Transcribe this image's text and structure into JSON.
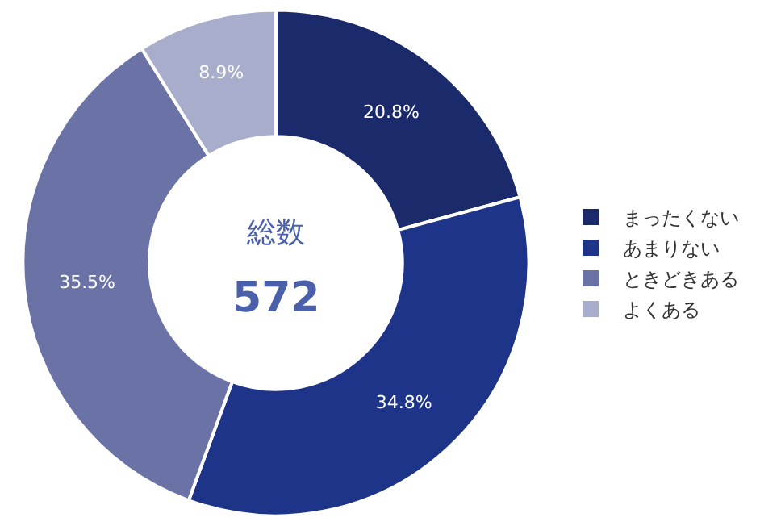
{
  "chart_data": {
    "type": "donut",
    "categories": [
      "まったくない",
      "あまりない",
      "ときどきある",
      "よくある"
    ],
    "values": [
      20.8,
      34.8,
      35.5,
      8.9
    ],
    "value_labels": [
      "20.8%",
      "34.8%",
      "35.5%",
      "8.9%"
    ],
    "colors": [
      "#1b2a6b",
      "#1e3488",
      "#6a72a6",
      "#a8adcb"
    ],
    "annotations": [
      "総数",
      "572"
    ],
    "legend": "right"
  }
}
